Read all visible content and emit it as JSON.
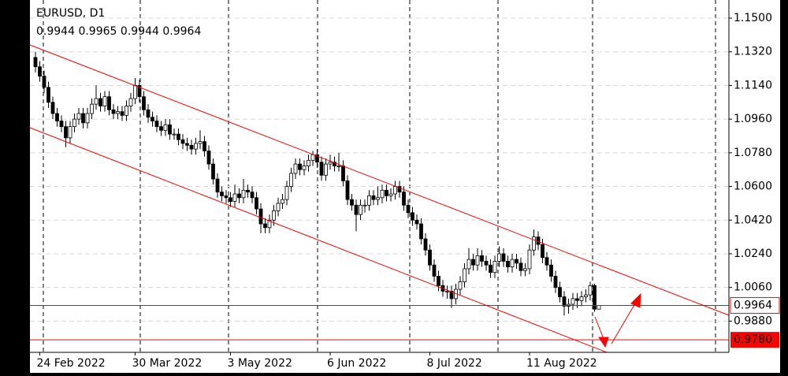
{
  "chart_data": {
    "type": "candlestick",
    "title": "EURUSD, D1",
    "open": [
      1.129,
      1.124,
      1.119,
      1.113,
      1.105,
      1.099,
      1.095,
      1.092,
      1.086,
      1.092,
      1.096,
      1.099,
      1.094,
      1.099,
      1.104,
      1.107,
      1.103,
      1.108,
      1.101,
      1.099,
      1.1,
      1.098,
      1.103,
      1.107,
      1.114,
      1.108,
      1.101,
      1.097,
      1.095,
      1.092,
      1.09,
      1.093,
      1.088,
      1.088,
      1.085,
      1.083,
      1.082,
      1.08,
      1.083,
      1.084,
      1.079,
      1.072,
      1.064,
      1.057,
      1.055,
      1.054,
      1.052,
      1.056,
      1.054,
      1.058,
      1.057,
      1.054,
      1.048,
      1.04,
      1.038,
      1.042,
      1.047,
      1.051,
      1.053,
      1.06,
      1.067,
      1.072,
      1.069,
      1.071,
      1.074,
      1.077,
      1.073,
      1.066,
      1.072,
      1.073,
      1.071,
      1.071,
      1.063,
      1.053,
      1.05,
      1.045,
      1.05,
      1.05,
      1.055,
      1.053,
      1.054,
      1.058,
      1.055,
      1.056,
      1.06,
      1.057,
      1.05,
      1.046,
      1.042,
      1.04,
      1.032,
      1.026,
      1.018,
      1.012,
      1.007,
      1.004,
      1.004,
      1.0,
      1.005,
      1.009,
      1.016,
      1.021,
      1.018,
      1.023,
      1.02,
      1.018,
      1.014,
      1.02,
      1.024,
      1.02,
      1.017,
      1.021,
      1.019,
      1.015,
      1.016,
      1.026,
      1.033,
      1.029,
      1.022,
      1.018,
      1.012,
      1.006,
      1.001,
      0.996,
      0.997,
      1.0,
      0.999,
      1.001,
      1.002,
      1.007,
      0.9944
    ],
    "high": [
      1.132,
      1.127,
      1.122,
      1.116,
      1.108,
      1.102,
      1.098,
      1.095,
      1.095,
      1.099,
      1.102,
      1.102,
      1.102,
      1.107,
      1.114,
      1.11,
      1.111,
      1.111,
      1.104,
      1.103,
      1.103,
      1.106,
      1.11,
      1.118,
      1.117,
      1.111,
      1.104,
      1.1,
      1.098,
      1.095,
      1.096,
      1.096,
      1.091,
      1.091,
      1.088,
      1.086,
      1.085,
      1.086,
      1.09,
      1.087,
      1.082,
      1.075,
      1.067,
      1.06,
      1.058,
      1.057,
      1.061,
      1.059,
      1.064,
      1.061,
      1.06,
      1.057,
      1.051,
      1.043,
      1.045,
      1.05,
      1.054,
      1.056,
      1.063,
      1.07,
      1.075,
      1.075,
      1.074,
      1.077,
      1.079,
      1.08,
      1.076,
      1.075,
      1.077,
      1.076,
      1.078,
      1.074,
      1.066,
      1.056,
      1.053,
      1.053,
      1.053,
      1.058,
      1.058,
      1.06,
      1.061,
      1.061,
      1.059,
      1.063,
      1.063,
      1.06,
      1.053,
      1.049,
      1.045,
      1.043,
      1.035,
      1.029,
      1.021,
      1.015,
      1.01,
      1.007,
      1.007,
      1.008,
      1.012,
      1.019,
      1.027,
      1.024,
      1.027,
      1.026,
      1.023,
      1.021,
      1.023,
      1.028,
      1.027,
      1.023,
      1.024,
      1.024,
      1.022,
      1.019,
      1.029,
      1.037,
      1.036,
      1.032,
      1.025,
      1.021,
      1.015,
      1.009,
      1.004,
      1.0,
      1.003,
      1.003,
      1.004,
      1.005,
      1.009,
      1.008,
      0.9965
    ],
    "low": [
      1.121,
      1.116,
      1.11,
      1.102,
      1.096,
      1.092,
      1.089,
      1.081,
      1.083,
      1.089,
      1.093,
      1.091,
      1.091,
      1.096,
      1.101,
      1.1,
      1.1,
      1.098,
      1.096,
      1.096,
      1.095,
      1.095,
      1.1,
      1.104,
      1.105,
      1.098,
      1.094,
      1.092,
      1.089,
      1.087,
      1.087,
      1.085,
      1.085,
      1.082,
      1.08,
      1.079,
      1.077,
      1.077,
      1.08,
      1.076,
      1.069,
      1.061,
      1.054,
      1.052,
      1.051,
      1.049,
      1.049,
      1.051,
      1.051,
      1.054,
      1.051,
      1.045,
      1.035,
      1.035,
      1.035,
      1.039,
      1.044,
      1.048,
      1.05,
      1.057,
      1.064,
      1.066,
      1.066,
      1.068,
      1.071,
      1.07,
      1.063,
      1.063,
      1.069,
      1.068,
      1.068,
      1.06,
      1.05,
      1.047,
      1.036,
      1.042,
      1.046,
      1.047,
      1.05,
      1.05,
      1.051,
      1.052,
      1.052,
      1.053,
      1.054,
      1.047,
      1.043,
      1.039,
      1.037,
      1.029,
      1.023,
      1.015,
      1.009,
      1.004,
      1.001,
      1.0,
      0.995,
      0.997,
      1.002,
      1.006,
      1.013,
      1.015,
      1.015,
      1.017,
      1.015,
      1.011,
      1.011,
      1.017,
      1.017,
      1.014,
      1.014,
      1.016,
      1.012,
      1.012,
      1.013,
      1.023,
      1.026,
      1.019,
      1.015,
      1.009,
      1.003,
      0.998,
      0.991,
      0.992,
      0.994,
      0.995,
      0.996,
      0.998,
      0.999,
      0.993,
      0.9944
    ],
    "close": [
      1.124,
      1.119,
      1.113,
      1.105,
      1.099,
      1.095,
      1.092,
      1.086,
      1.092,
      1.096,
      1.099,
      1.094,
      1.099,
      1.104,
      1.107,
      1.103,
      1.108,
      1.101,
      1.099,
      1.1,
      1.098,
      1.103,
      1.107,
      1.114,
      1.108,
      1.101,
      1.097,
      1.095,
      1.092,
      1.09,
      1.093,
      1.088,
      1.088,
      1.085,
      1.083,
      1.082,
      1.08,
      1.083,
      1.084,
      1.079,
      1.072,
      1.064,
      1.057,
      1.055,
      1.054,
      1.052,
      1.056,
      1.054,
      1.058,
      1.057,
      1.054,
      1.048,
      1.04,
      1.038,
      1.042,
      1.047,
      1.051,
      1.053,
      1.06,
      1.067,
      1.072,
      1.069,
      1.071,
      1.074,
      1.077,
      1.073,
      1.066,
      1.072,
      1.073,
      1.071,
      1.071,
      1.063,
      1.053,
      1.05,
      1.045,
      1.05,
      1.05,
      1.055,
      1.053,
      1.054,
      1.058,
      1.055,
      1.056,
      1.06,
      1.057,
      1.05,
      1.046,
      1.042,
      1.04,
      1.032,
      1.026,
      1.018,
      1.012,
      1.007,
      1.004,
      1.004,
      1.0,
      1.005,
      1.009,
      1.016,
      1.021,
      1.018,
      1.023,
      1.02,
      1.018,
      1.014,
      1.02,
      1.024,
      1.02,
      1.017,
      1.021,
      1.019,
      1.015,
      1.016,
      1.026,
      1.033,
      1.029,
      1.022,
      1.018,
      1.012,
      1.006,
      1.001,
      0.996,
      0.997,
      1.0,
      0.999,
      1.001,
      1.002,
      1.007,
      0.9944,
      0.9964
    ],
    "xticks": [
      {
        "value": 1,
        "label": "24 Feb 2022"
      },
      {
        "value": 23,
        "label": "30 Mar 2022"
      },
      {
        "value": 45,
        "label": "3 May 2022"
      },
      {
        "value": 68,
        "label": "6 Jun 2022"
      },
      {
        "value": 91,
        "label": "8 Jul 2022"
      },
      {
        "value": 114,
        "label": "11 Aug 2022"
      }
    ],
    "ylim": [
      0.9713,
      1.1597
    ],
    "yticks": [
      {
        "value": 1.15,
        "label": "1.1500"
      },
      {
        "value": 1.132,
        "label": "1.1320"
      },
      {
        "value": 1.114,
        "label": "1.1140"
      },
      {
        "value": 1.096,
        "label": "1.0960"
      },
      {
        "value": 1.078,
        "label": "1.0780"
      },
      {
        "value": 1.06,
        "label": "1.0600"
      },
      {
        "value": 1.042,
        "label": "1.0420"
      },
      {
        "value": 1.024,
        "label": "1.0240"
      },
      {
        "value": 1.006,
        "label": "1.0060"
      },
      {
        "value": 0.988,
        "label": "0.9880"
      }
    ],
    "levels": [
      {
        "value": 0.978,
        "label": "0.9780"
      }
    ],
    "grid": true,
    "up_color": "#ffffff",
    "down_color": "#000000",
    "line_color": "#ff0000"
  }
}
